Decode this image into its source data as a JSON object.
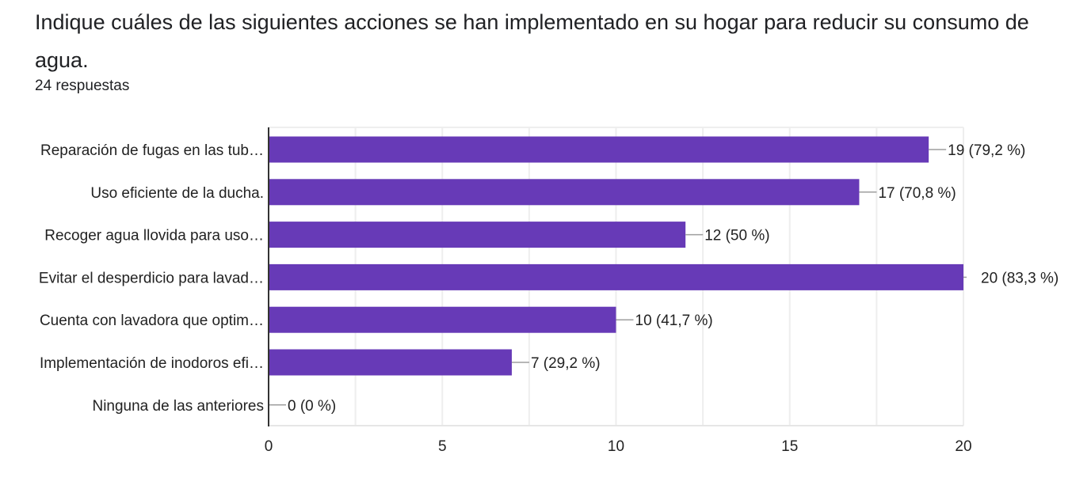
{
  "header": {
    "title": "Indique cuáles de las siguientes acciones se han implementado en su hogar para reducir su consumo de agua.",
    "responses": "24 respuestas"
  },
  "chart_data": {
    "type": "bar",
    "orientation": "horizontal",
    "title": "Indique cuáles de las siguientes acciones se han implementado en su hogar para reducir su consumo de agua.",
    "categories": [
      "Reparación de fugas en las tub…",
      "Uso eficiente de la ducha.",
      "Recoger agua llovida para uso…",
      "Evitar el desperdicio para lavad…",
      "Cuenta con lavadora que optim…",
      "Implementación de inodoros efi…",
      "Ninguna de las anteriores"
    ],
    "values": [
      19,
      17,
      12,
      20,
      10,
      7,
      0
    ],
    "data_labels": [
      "19 (79,2 %)",
      "17 (70,8 %)",
      "12 (50 %)",
      "20 (83,3 %)",
      "10 (41,7 %)",
      "7 (29,2 %)",
      "0 (0 %)"
    ],
    "xlim": [
      0,
      20
    ],
    "xticks": [
      0,
      5,
      10,
      15,
      20
    ],
    "gridlines_every": 2.5,
    "grid": true,
    "bar_color": "#673ab7"
  }
}
